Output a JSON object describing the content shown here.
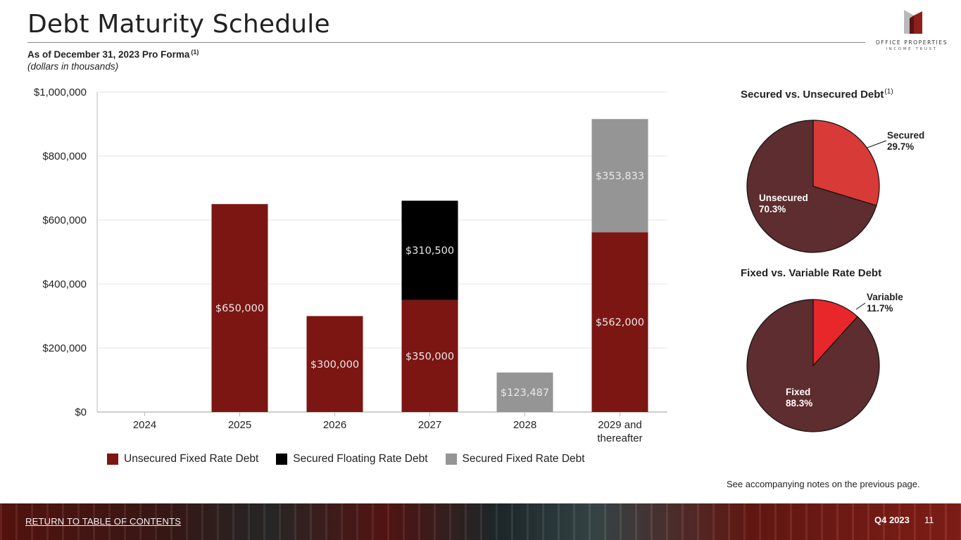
{
  "header": {
    "title": "Debt Maturity Schedule",
    "subtitle": "As of December 31, 2023 Pro Forma",
    "subtitle_footnote": "(1)",
    "units_note": "(dollars in thousands)"
  },
  "logo": {
    "line1": "OFFICE PROPERTIES",
    "line2": "INCOME TRUST",
    "icon": "building-logo-icon"
  },
  "colors": {
    "unsecured_fixed": "#7b1613",
    "secured_floating": "#000000",
    "secured_fixed": "#959595",
    "pie_dark": "#5e2d2f",
    "pie_secured": "#d83a37",
    "pie_variable": "#e8272b"
  },
  "chart_data": [
    {
      "type": "bar",
      "stacked": true,
      "categories": [
        "2024",
        "2025",
        "2026",
        "2027",
        "2028",
        "2029 and thereafter"
      ],
      "series": [
        {
          "name": "Unsecured Fixed Rate Debt",
          "values": [
            0,
            650000,
            300000,
            350000,
            0,
            562000
          ],
          "labels": [
            "",
            "$650,000",
            "$300,000",
            "$350,000",
            "",
            "$562,000"
          ]
        },
        {
          "name": "Secured Floating Rate Debt",
          "values": [
            0,
            0,
            0,
            310500,
            0,
            0
          ],
          "labels": [
            "",
            "",
            "",
            "$310,500",
            "",
            ""
          ]
        },
        {
          "name": "Secured Fixed Rate Debt",
          "values": [
            0,
            0,
            0,
            0,
            123487,
            353833
          ],
          "labels": [
            "",
            "",
            "",
            "",
            "$123,487",
            "$353,833"
          ]
        }
      ],
      "yticks": [
        "$0",
        "$200,000",
        "$400,000",
        "$600,000",
        "$800,000",
        "$1,000,000"
      ],
      "ylim": [
        0,
        1000000
      ],
      "grid": true,
      "legend": "bottom"
    },
    {
      "type": "pie",
      "title": "Secured vs. Unsecured Debt",
      "title_footnote": "(1)",
      "slices": [
        {
          "name": "Secured",
          "value": 29.7,
          "label": "29.7%"
        },
        {
          "name": "Unsecured",
          "value": 70.3,
          "label": "70.3%"
        }
      ]
    },
    {
      "type": "pie",
      "title": "Fixed vs. Variable Rate Debt",
      "slices": [
        {
          "name": "Variable",
          "value": 11.7,
          "label": "11.7%"
        },
        {
          "name": "Fixed",
          "value": 88.3,
          "label": "88.3%"
        }
      ]
    }
  ],
  "notes": "See accompanying notes on the previous page.",
  "footer": {
    "link": "RETURN TO TABLE OF CONTENTS",
    "quarter": "Q4 2023",
    "page": "11"
  }
}
